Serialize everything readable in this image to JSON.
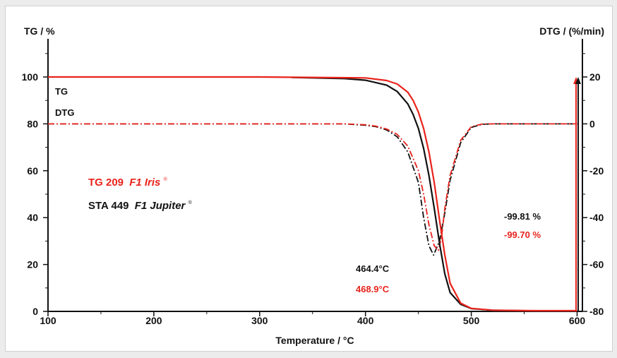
{
  "chart_data": {
    "type": "line",
    "left_axis_title": "TG / %",
    "right_axis_title": "DTG / (%/min)",
    "xlabel": "Temperature / °C",
    "xlim": [
      100,
      605
    ],
    "ylim_left": [
      0,
      100
    ],
    "ylim_right": [
      -80,
      20
    ],
    "x_ticks": [
      "100",
      "200",
      "300",
      "400",
      "500",
      "600"
    ],
    "y_left_ticks": [
      "0",
      "20",
      "40",
      "60",
      "80",
      "100"
    ],
    "y_right_ticks": [
      "-80",
      "-60",
      "-40",
      "-20",
      "0",
      "20"
    ],
    "grid": false,
    "curve_labels": {
      "tg": "TG",
      "dtg": "DTG"
    },
    "instruments": {
      "red": {
        "name": "TG 209",
        "model": "F1 Iris",
        "mark": "®",
        "color": "#e8231c"
      },
      "black": {
        "name": "STA 449",
        "model": "F1 Jupiter",
        "mark": "®",
        "color": "#111111"
      }
    },
    "annotations": {
      "mass_loss_black": "-99.81 %",
      "mass_loss_red": "-99.70 %",
      "peak_black": "464.4°C",
      "peak_red": "468.9°C"
    },
    "series": [
      {
        "axis": "left",
        "instrument": "black",
        "style": "solid",
        "x": [
          330,
          380,
          400,
          420,
          430,
          440,
          445,
          450,
          455,
          460,
          465,
          470,
          475,
          480,
          490,
          500,
          520,
          560,
          600
        ],
        "y": [
          99.8,
          99.3,
          98.6,
          96.5,
          93.8,
          88.5,
          84,
          78,
          69.5,
          58,
          44,
          29,
          16,
          8,
          3,
          1.2,
          0.5,
          0.2,
          0.2
        ]
      },
      {
        "axis": "left",
        "instrument": "red",
        "style": "solid",
        "x": [
          100,
          300,
          400,
          420,
          430,
          440,
          445,
          450,
          455,
          460,
          465,
          470,
          475,
          480,
          490,
          500,
          520,
          560,
          600
        ],
        "y": [
          100,
          100,
          99.6,
          98.5,
          97,
          93.5,
          90,
          85,
          78,
          68,
          55,
          39,
          24,
          12,
          3.5,
          1.3,
          0.5,
          0.3,
          0.3
        ]
      },
      {
        "axis": "right",
        "instrument": "black",
        "style": "dash-dot",
        "x": [
          100,
          200,
          300,
          380,
          400,
          410,
          420,
          430,
          440,
          450,
          455,
          460,
          464.4,
          470,
          475,
          480,
          490,
          500,
          510,
          520,
          560,
          600
        ],
        "y": [
          0,
          0,
          0,
          0,
          -0.6,
          -1.2,
          -2.6,
          -5.5,
          -12,
          -25,
          -40,
          -52,
          -56,
          -50,
          -38,
          -24,
          -8,
          -1.5,
          -0.2,
          0,
          0,
          0
        ]
      },
      {
        "axis": "right",
        "instrument": "red",
        "style": "dash-dot",
        "x": [
          100,
          200,
          300,
          380,
          400,
          410,
          420,
          430,
          440,
          450,
          455,
          460,
          465,
          468.9,
          472,
          475,
          480,
          490,
          500,
          510,
          520,
          560,
          600
        ],
        "y": [
          0,
          0,
          0,
          0,
          -0.4,
          -1,
          -2.2,
          -4.5,
          -9.5,
          -20,
          -30,
          -43,
          -52,
          -54,
          -48,
          -36,
          -22,
          -7,
          -1.2,
          -0.1,
          0,
          0,
          0
        ]
      }
    ],
    "mass_loss_arrows": {
      "from": 0,
      "to": 100
    }
  }
}
